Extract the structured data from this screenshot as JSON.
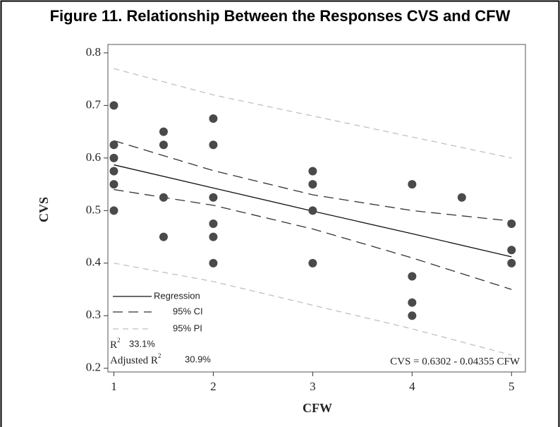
{
  "chart_data": {
    "type": "scatter",
    "title": "Figure 11. Relationship Between the Responses CVS and CFW",
    "xlabel": "CFW",
    "ylabel": "CVS",
    "xlim": [
      0.94,
      5.14
    ],
    "ylim": [
      0.193,
      0.816
    ],
    "xticks": [
      1,
      2,
      3,
      4,
      5
    ],
    "yticks": [
      0.2,
      0.3,
      0.4,
      0.5,
      0.6,
      0.7,
      0.8
    ],
    "points": {
      "color": "#4a4a4a",
      "x": [
        1,
        1,
        1,
        1,
        1,
        1,
        1.5,
        1.5,
        1.5,
        1.5,
        2,
        2,
        2,
        2,
        2,
        2,
        3,
        3,
        3,
        3,
        4,
        4,
        4,
        4,
        4.5,
        5,
        5,
        5
      ],
      "values": [
        0.7,
        0.625,
        0.6,
        0.575,
        0.55,
        0.5,
        0.65,
        0.625,
        0.525,
        0.45,
        0.675,
        0.625,
        0.525,
        0.475,
        0.45,
        0.4,
        0.575,
        0.55,
        0.5,
        0.4,
        0.55,
        0.375,
        0.325,
        0.3,
        0.525,
        0.475,
        0.425,
        0.4
      ]
    },
    "line_x": [
      1,
      2,
      3,
      4,
      5
    ],
    "lines": [
      {
        "name": "Regression",
        "color": "#111111",
        "dash": "none",
        "values": [
          0.587,
          0.543,
          0.499,
          0.456,
          0.412
        ]
      },
      {
        "name": "95% CI",
        "color": "#333333",
        "dash": "14 8",
        "upper": [
          0.633,
          0.576,
          0.53,
          0.5,
          0.48
        ],
        "lower": [
          0.54,
          0.51,
          0.465,
          0.41,
          0.35
        ]
      },
      {
        "name": "95% PI",
        "color": "#c0c0c0",
        "dash": "8 6",
        "upper": [
          0.77,
          0.72,
          0.68,
          0.64,
          0.6
        ],
        "lower": [
          0.4,
          0.365,
          0.32,
          0.275,
          0.225
        ]
      }
    ],
    "r2_label": "R",
    "r2_sup": "2",
    "r2_value": "33.1%",
    "adj_label": "Adjusted R",
    "adj_sup": "2",
    "adj_value": "30.9%",
    "equation": "CVS =  0.6302 - 0.04355 CFW"
  }
}
